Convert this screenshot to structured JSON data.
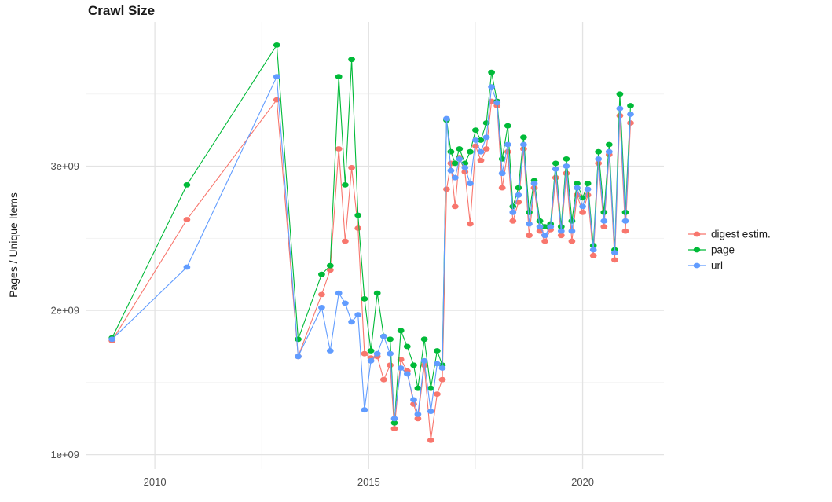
{
  "figure": {
    "background": "#FFFFFF"
  },
  "colors": {
    "grid_major": "#E3E3E3",
    "grid_minor": "#F1F1F1",
    "tick_text": "#4D4D4D",
    "title_text": "#1A1A1A"
  },
  "chart_data": {
    "type": "line",
    "title": "Crawl Size",
    "xlabel": "",
    "ylabel": "Pages / Unique Items",
    "legend_position": "right",
    "grid": true,
    "y_unit_multiplier": 1000000000,
    "xlim": [
      2008.4,
      2021.9
    ],
    "ylim_1e9": [
      0.9,
      4.0
    ],
    "xticks": [
      {
        "value": 2010,
        "label": "2010"
      },
      {
        "value": 2015,
        "label": "2015"
      },
      {
        "value": 2020,
        "label": "2020"
      }
    ],
    "yticks": [
      {
        "value": 1.0,
        "label": "1e+09"
      },
      {
        "value": 2.0,
        "label": "2e+09"
      },
      {
        "value": 3.0,
        "label": "3e+09"
      }
    ],
    "minor_xticks": [
      2012.5,
      2017.5
    ],
    "minor_yticks": [
      1.5,
      2.5,
      3.5
    ],
    "x_years": [
      2009.0,
      2010.75,
      2012.85,
      2013.35,
      2013.9,
      2014.1,
      2014.3,
      2014.45,
      2014.6,
      2014.75,
      2014.9,
      2015.05,
      2015.2,
      2015.35,
      2015.5,
      2015.6,
      2015.75,
      2015.9,
      2016.05,
      2016.15,
      2016.3,
      2016.45,
      2016.6,
      2016.72,
      2016.82,
      2016.92,
      2017.02,
      2017.12,
      2017.25,
      2017.37,
      2017.5,
      2017.62,
      2017.75,
      2017.87,
      2018.0,
      2018.12,
      2018.25,
      2018.37,
      2018.5,
      2018.62,
      2018.75,
      2018.87,
      2019.0,
      2019.12,
      2019.25,
      2019.37,
      2019.5,
      2019.62,
      2019.75,
      2019.87,
      2020.0,
      2020.12,
      2020.25,
      2020.37,
      2020.5,
      2020.62,
      2020.75,
      2020.87,
      2021.0,
      2021.12
    ],
    "series": [
      {
        "name": "digest estim.",
        "color": "#F8766D",
        "values_1e9": [
          1.79,
          2.63,
          3.46,
          1.68,
          2.11,
          2.28,
          3.12,
          2.48,
          2.99,
          2.57,
          1.7,
          1.67,
          1.68,
          1.52,
          1.62,
          1.18,
          1.66,
          1.58,
          1.35,
          1.25,
          1.62,
          1.1,
          1.42,
          1.52,
          2.84,
          3.02,
          2.72,
          3.06,
          2.96,
          2.6,
          3.14,
          3.04,
          3.12,
          3.45,
          3.42,
          2.85,
          3.1,
          2.62,
          2.75,
          3.12,
          2.52,
          2.85,
          2.55,
          2.48,
          2.56,
          2.92,
          2.52,
          2.95,
          2.48,
          2.8,
          2.68,
          2.8,
          2.38,
          3.02,
          2.58,
          3.08,
          2.35,
          3.35,
          2.55,
          3.3
        ]
      },
      {
        "name": "page",
        "color": "#00BA38",
        "values_1e9": [
          1.81,
          2.87,
          3.84,
          1.8,
          2.25,
          2.31,
          3.62,
          2.87,
          3.74,
          2.66,
          2.08,
          1.72,
          2.12,
          1.82,
          1.8,
          1.22,
          1.86,
          1.75,
          1.62,
          1.46,
          1.8,
          1.46,
          1.72,
          1.62,
          3.32,
          3.1,
          3.02,
          3.12,
          3.02,
          3.1,
          3.25,
          3.18,
          3.3,
          3.65,
          3.45,
          3.05,
          3.28,
          2.72,
          2.85,
          3.2,
          2.68,
          2.9,
          2.62,
          2.58,
          2.6,
          3.02,
          2.58,
          3.05,
          2.62,
          2.88,
          2.78,
          2.88,
          2.45,
          3.1,
          2.68,
          3.15,
          2.42,
          3.5,
          2.68,
          3.42
        ]
      },
      {
        "name": "url",
        "color": "#619CFF",
        "values_1e9": [
          1.8,
          2.3,
          3.62,
          1.68,
          2.02,
          1.72,
          2.12,
          2.05,
          1.92,
          1.97,
          1.31,
          1.65,
          1.7,
          1.82,
          1.7,
          1.25,
          1.6,
          1.56,
          1.38,
          1.28,
          1.65,
          1.3,
          1.63,
          1.6,
          3.33,
          2.97,
          2.92,
          3.05,
          2.99,
          2.88,
          3.18,
          3.1,
          3.2,
          3.55,
          3.44,
          2.95,
          3.15,
          2.68,
          2.8,
          3.15,
          2.6,
          2.88,
          2.58,
          2.52,
          2.58,
          2.98,
          2.55,
          3.0,
          2.55,
          2.85,
          2.72,
          2.84,
          2.42,
          3.05,
          2.62,
          3.1,
          2.4,
          3.4,
          2.62,
          3.36
        ]
      }
    ]
  }
}
